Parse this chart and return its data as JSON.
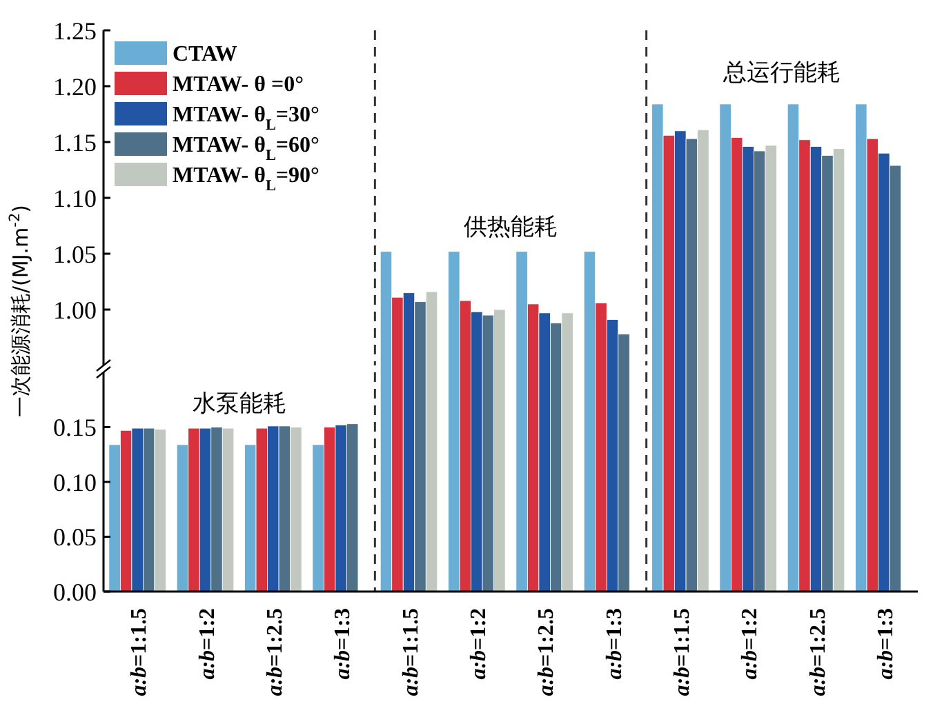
{
  "chart_data": [
    {
      "type": "bar",
      "ylabel": "一次能源消耗/(MJ.m$^{-2}$)",
      "categories": [
        null,
        null,
        null,
        null,
        "a:b=1:1.5",
        "a:b=1:2",
        "a:b=1:2.5",
        "a:b=1:3",
        "a:b=1:1.5",
        "a:b=1:2",
        "a:b=1:2.5",
        "a:b=1:3"
      ],
      "series": [
        {
          "name": "CTAW",
          "color": "#6aaed6",
          "values": [
            null,
            null,
            null,
            null,
            1.052,
            1.052,
            1.052,
            1.052,
            1.184,
            1.184,
            1.184,
            1.184
          ]
        },
        {
          "name": "MTAW- θ =0°",
          "color": "#d8323f",
          "values": [
            null,
            null,
            null,
            null,
            1.011,
            1.008,
            1.005,
            1.006,
            1.156,
            1.154,
            1.152,
            1.153
          ]
        },
        {
          "name": "MTAW- θ$_{L}$=30°",
          "color": "#2255a4",
          "values": [
            null,
            null,
            null,
            null,
            1.015,
            0.998,
            0.997,
            0.991,
            1.16,
            1.146,
            1.146,
            1.14
          ]
        },
        {
          "name": "MTAW- θ$_{L}$=60°",
          "color": "#4e7088",
          "values": [
            null,
            null,
            null,
            null,
            1.007,
            0.995,
            0.988,
            0.978,
            1.153,
            1.142,
            1.138,
            1.129
          ]
        },
        {
          "name": "MTAW- θ$_{L}$=90°",
          "color": "#c0c8c0",
          "values": [
            null,
            null,
            null,
            null,
            1.016,
            1.0,
            0.997,
            null,
            1.161,
            1.147,
            1.144,
            null
          ]
        }
      ],
      "ylim": [
        0.95,
        1.25
      ],
      "yticks": [
        {
          "value": 1.0,
          "label": "1.00"
        },
        {
          "value": 1.05,
          "label": "1.05"
        },
        {
          "value": 1.1,
          "label": "1.10"
        },
        {
          "value": 1.15,
          "label": "1.15"
        },
        {
          "value": 1.2,
          "label": "1.20"
        },
        {
          "value": 1.25,
          "label": "1.25"
        }
      ],
      "tick_labels": "y",
      "legend": "top left",
      "annotations": [
        "供热能耗",
        "总运行能耗"
      ]
    },
    {
      "type": "bar",
      "categories": [
        "a:b=1:1.5",
        "a:b=1:2",
        "a:b=1:2.5",
        "a:b=1:3",
        null,
        null,
        null,
        null,
        null,
        null,
        null,
        null
      ],
      "series": [
        {
          "color": "#6aaed6",
          "values": [
            0.134,
            0.134,
            0.134,
            0.134,
            null,
            null,
            null,
            null,
            null,
            null,
            null,
            null
          ]
        },
        {
          "color": "#d8323f",
          "values": [
            0.147,
            0.149,
            0.149,
            0.15,
            null,
            null,
            null,
            null,
            null,
            null,
            null,
            null
          ]
        },
        {
          "color": "#2255a4",
          "values": [
            0.149,
            0.149,
            0.151,
            0.152,
            null,
            null,
            null,
            null,
            null,
            null,
            null,
            null
          ]
        },
        {
          "color": "#4e7088",
          "values": [
            0.149,
            0.15,
            0.151,
            0.153,
            null,
            null,
            null,
            null,
            null,
            null,
            null,
            null
          ]
        },
        {
          "color": "#c0c8c0",
          "values": [
            0.148,
            0.149,
            0.15,
            null,
            null,
            null,
            null,
            null,
            null,
            null,
            null,
            null
          ]
        }
      ],
      "ylim": [
        0,
        0.2
      ],
      "yticks": [
        {
          "value": 0,
          "label": "0.00"
        },
        {
          "value": 0.05,
          "label": "0.05"
        },
        {
          "value": 0.1,
          "label": "0.10"
        },
        {
          "value": 0.15,
          "label": "0.15"
        }
      ],
      "annotations": [
        "水泵能耗"
      ]
    }
  ]
}
